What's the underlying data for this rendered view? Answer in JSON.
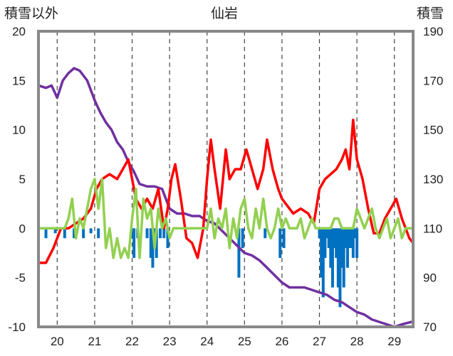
{
  "title": "仙岩",
  "left_axis_title": "積雪以外",
  "right_axis_title": "積雪",
  "chart_data": {
    "type": "line",
    "title": "仙岩",
    "x_range": [
      19.5,
      29.5
    ],
    "x_ticks": [
      "20",
      "21",
      "22",
      "23",
      "24",
      "25",
      "26",
      "27",
      "28",
      "29"
    ],
    "left_axis": {
      "label": "積雪以外",
      "range": [
        -10,
        20
      ],
      "ticks": [
        "20",
        "15",
        "10",
        "5",
        "0",
        "-5",
        "-10"
      ]
    },
    "right_axis": {
      "label": "積雪",
      "range": [
        70,
        190
      ],
      "ticks": [
        "190",
        "170",
        "150",
        "130",
        "110",
        "90",
        "70"
      ]
    },
    "grid": {
      "vertical_dashed": true,
      "horizontal": false
    },
    "series": [
      {
        "axis": "right",
        "color": "#7030a0",
        "x": [
          19.5,
          19.7,
          19.85,
          20.0,
          20.15,
          20.3,
          20.45,
          20.6,
          20.8,
          21.0,
          21.15,
          21.3,
          21.45,
          21.6,
          21.75,
          21.9,
          22.05,
          22.2,
          22.4,
          22.6,
          22.8,
          23.0,
          23.2,
          23.4,
          23.6,
          23.8,
          24.0,
          24.2,
          24.4,
          24.6,
          24.8,
          25.0,
          25.2,
          25.4,
          25.6,
          25.8,
          26.0,
          26.2,
          26.4,
          26.6,
          26.8,
          27.0,
          27.2,
          27.4,
          27.6,
          27.8,
          28.0,
          28.2,
          28.4,
          28.6,
          28.8,
          29.0,
          29.2,
          29.45
        ],
        "values": [
          168,
          167,
          168,
          163,
          170,
          173,
          175,
          174,
          170,
          162,
          157,
          153,
          150,
          145,
          142,
          137,
          133,
          128,
          127,
          127,
          126,
          118,
          116,
          116,
          115,
          115,
          113,
          112,
          109,
          106,
          103,
          100,
          99,
          97,
          94,
          91,
          88,
          86,
          86,
          86,
          85,
          84,
          83,
          81,
          80,
          78,
          76,
          75,
          73,
          72,
          71,
          70,
          71,
          72
        ]
      },
      {
        "axis": "left",
        "color": "#ff0000",
        "x": [
          19.5,
          19.7,
          19.9,
          20.1,
          20.3,
          20.5,
          20.7,
          20.9,
          21.05,
          21.2,
          21.4,
          21.6,
          21.75,
          21.9,
          22.0,
          22.1,
          22.25,
          22.4,
          22.55,
          22.7,
          22.85,
          22.95,
          23.05,
          23.15,
          23.3,
          23.45,
          23.6,
          23.75,
          23.9,
          24.0,
          24.1,
          24.2,
          24.35,
          24.5,
          24.6,
          24.75,
          24.9,
          25.05,
          25.2,
          25.35,
          25.5,
          25.6,
          25.75,
          25.9,
          26.0,
          26.1,
          26.2,
          26.3,
          26.5,
          26.7,
          26.85,
          27.0,
          27.15,
          27.3,
          27.45,
          27.6,
          27.7,
          27.8,
          27.9,
          28.0,
          28.15,
          28.3,
          28.45,
          28.6,
          28.75,
          28.9,
          29.05,
          29.2,
          29.3,
          29.4,
          29.5
        ],
        "values": [
          -3.5,
          -3.5,
          -2,
          0,
          0,
          0.5,
          1,
          2,
          4,
          5,
          5.5,
          5,
          6,
          7,
          5,
          3,
          2,
          3,
          2,
          4,
          0,
          2,
          5,
          6.5,
          3,
          -1,
          -1.5,
          -3,
          0,
          5,
          9,
          6,
          2,
          8,
          5,
          6,
          6,
          8,
          6,
          4,
          6,
          9,
          6,
          4,
          3,
          2.5,
          2,
          1.5,
          2,
          1.5,
          0.5,
          4,
          5,
          5.5,
          6,
          7,
          8,
          6,
          11,
          7,
          5,
          2,
          -0.5,
          -0.5,
          1,
          2,
          3,
          1,
          0,
          -1,
          -1.5
        ]
      },
      {
        "axis": "left",
        "color": "#92d050",
        "x": [
          19.5,
          19.7,
          19.8,
          19.9,
          20.0,
          20.1,
          20.2,
          20.3,
          20.4,
          20.5,
          20.6,
          20.7,
          20.8,
          20.9,
          21.0,
          21.1,
          21.2,
          21.3,
          21.4,
          21.5,
          21.6,
          21.7,
          21.8,
          21.9,
          22.0,
          22.1,
          22.2,
          22.3,
          22.4,
          22.5,
          22.6,
          22.7,
          22.8,
          22.9,
          23.0,
          23.1,
          23.2,
          23.3,
          23.4,
          23.5,
          23.6,
          23.7,
          23.8,
          23.9,
          24.0,
          24.1,
          24.2,
          24.3,
          24.4,
          24.5,
          24.6,
          24.7,
          24.8,
          24.9,
          25.0,
          25.1,
          25.2,
          25.3,
          25.4,
          25.5,
          25.6,
          25.7,
          25.8,
          25.9,
          26.0,
          26.1,
          26.2,
          26.3,
          26.4,
          26.5,
          26.6,
          26.7,
          26.8,
          26.9,
          27.0,
          27.1,
          27.2,
          27.3,
          27.4,
          27.5,
          27.6,
          27.7,
          27.8,
          27.9,
          28.0,
          28.1,
          28.2,
          28.3,
          28.4,
          28.5,
          28.6,
          28.7,
          28.8,
          28.9,
          29.0,
          29.1,
          29.2,
          29.3,
          29.4,
          29.5
        ],
        "values": [
          0,
          0,
          0,
          0,
          0,
          0,
          0,
          1,
          3,
          -1,
          1,
          0,
          2,
          4,
          5,
          2,
          5,
          -2,
          0,
          -3,
          -1,
          -3,
          -2,
          -3,
          1,
          4,
          -3,
          3,
          1,
          2,
          -2,
          2,
          0,
          1,
          -1,
          0,
          0,
          0,
          0,
          0,
          0,
          0,
          0,
          0,
          0,
          2,
          -1,
          1,
          0,
          2,
          -2,
          1,
          -1,
          2,
          3,
          0,
          -1,
          2,
          0,
          3,
          0,
          -1,
          0,
          2,
          0,
          1,
          0,
          0,
          0,
          1,
          -1,
          0,
          1,
          0,
          0,
          0,
          0,
          0,
          1,
          1,
          0,
          0,
          0,
          0,
          2,
          1,
          0,
          1,
          2,
          0,
          -1,
          0,
          1,
          -1,
          0,
          1,
          -1,
          0,
          0,
          0
        ]
      },
      {
        "axis": "left",
        "type": "bar",
        "color": "#0070c0",
        "x": [
          19.7,
          19.95,
          20.2,
          20.45,
          20.7,
          20.9,
          21.1,
          22.0,
          22.05,
          22.15,
          22.4,
          22.5,
          22.55,
          22.6,
          22.65,
          22.75,
          22.85,
          22.95,
          24.85,
          24.95,
          25.55,
          25.95,
          26.05,
          27.0,
          27.05,
          27.1,
          27.15,
          27.2,
          27.25,
          27.3,
          27.35,
          27.4,
          27.45,
          27.5,
          27.55,
          27.6,
          27.65,
          27.7,
          27.75,
          27.8,
          27.85,
          27.9,
          27.95,
          28.0
        ],
        "values": [
          -1,
          -0.5,
          -1,
          -1,
          -1,
          -0.5,
          -1,
          -1,
          -3,
          -1,
          -1,
          -3,
          -4,
          -2,
          -3,
          -1,
          -1,
          -2,
          -5,
          -2,
          -1,
          -3,
          -2,
          -1,
          -5,
          -7,
          -3,
          -1,
          -2,
          -4,
          -6,
          -2,
          -3,
          -6,
          -8,
          -4,
          -6,
          -2,
          -4,
          -2,
          -2,
          -3,
          -1,
          -3
        ]
      }
    ]
  }
}
